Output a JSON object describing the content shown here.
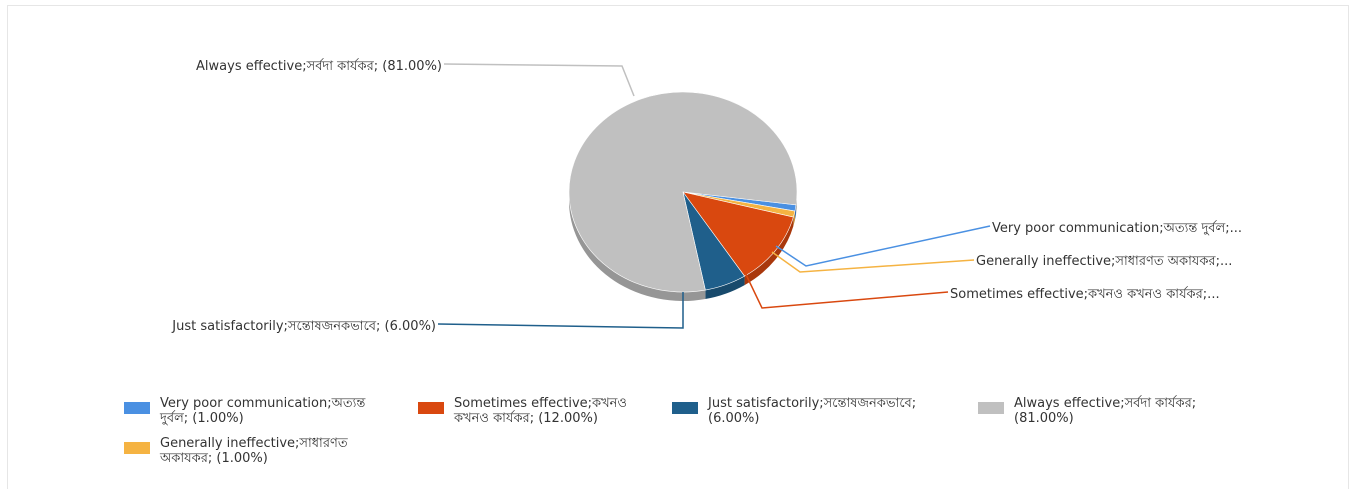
{
  "chart_data": {
    "type": "pie",
    "title": "",
    "slices": [
      {
        "label": "Very poor communication;অত্যন্ত দুর্বল; (1.00%)",
        "callout": "Very poor communication;অত্যন্ত দুর্বল;...",
        "value": 1.0,
        "color": "#4a90e2"
      },
      {
        "label": "Generally ineffective;সাধারণত অকাযকর; (1.00%)",
        "callout": "Generally ineffective;সাধারণত অকাযকর;...",
        "value": 1.0,
        "color": "#f5b342"
      },
      {
        "label": "Sometimes effective;কখনও কখনও কার্যকর; (12.00%)",
        "callout": "Sometimes effective;কখনও কখনও কার্যকর;...",
        "value": 12.0,
        "color": "#d9480f"
      },
      {
        "label": "Just satisfactorily;সন্তোষজনকভাবে; (6.00%)",
        "callout": "Just satisfactorily;সন্তোষজনকভাবে; (6.00%)",
        "value": 6.0,
        "color": "#1f5f8b"
      },
      {
        "label": "Always effective;সর্বদা কার্যকর; (81.00%)",
        "callout": "Always effective;সর্বদা কার্যকর; (81.00%)",
        "value": 81.0,
        "color": "#c0c0c0"
      }
    ],
    "legend": {
      "placement": "bottom",
      "entries": [
        {
          "line1": "Very poor communication;অত্যন্ত",
          "line2": "দুর্বল; (1.00%)",
          "color": "#4a90e2"
        },
        {
          "line1": "Sometimes effective;কখনও",
          "line2": "কখনও কার্যকর; (12.00%)",
          "color": "#d9480f"
        },
        {
          "line1": "Just satisfactorily;সন্তোষজনকভাবে;",
          "line2": "(6.00%)",
          "color": "#1f5f8b"
        },
        {
          "line1": "Always effective;সর্বদা কার্যকর;",
          "line2": "(81.00%)",
          "color": "#c0c0c0"
        },
        {
          "line1": "Generally ineffective;সাধারণত",
          "line2": "অকাযকর; (1.00%)",
          "color": "#f5b342"
        }
      ]
    }
  }
}
